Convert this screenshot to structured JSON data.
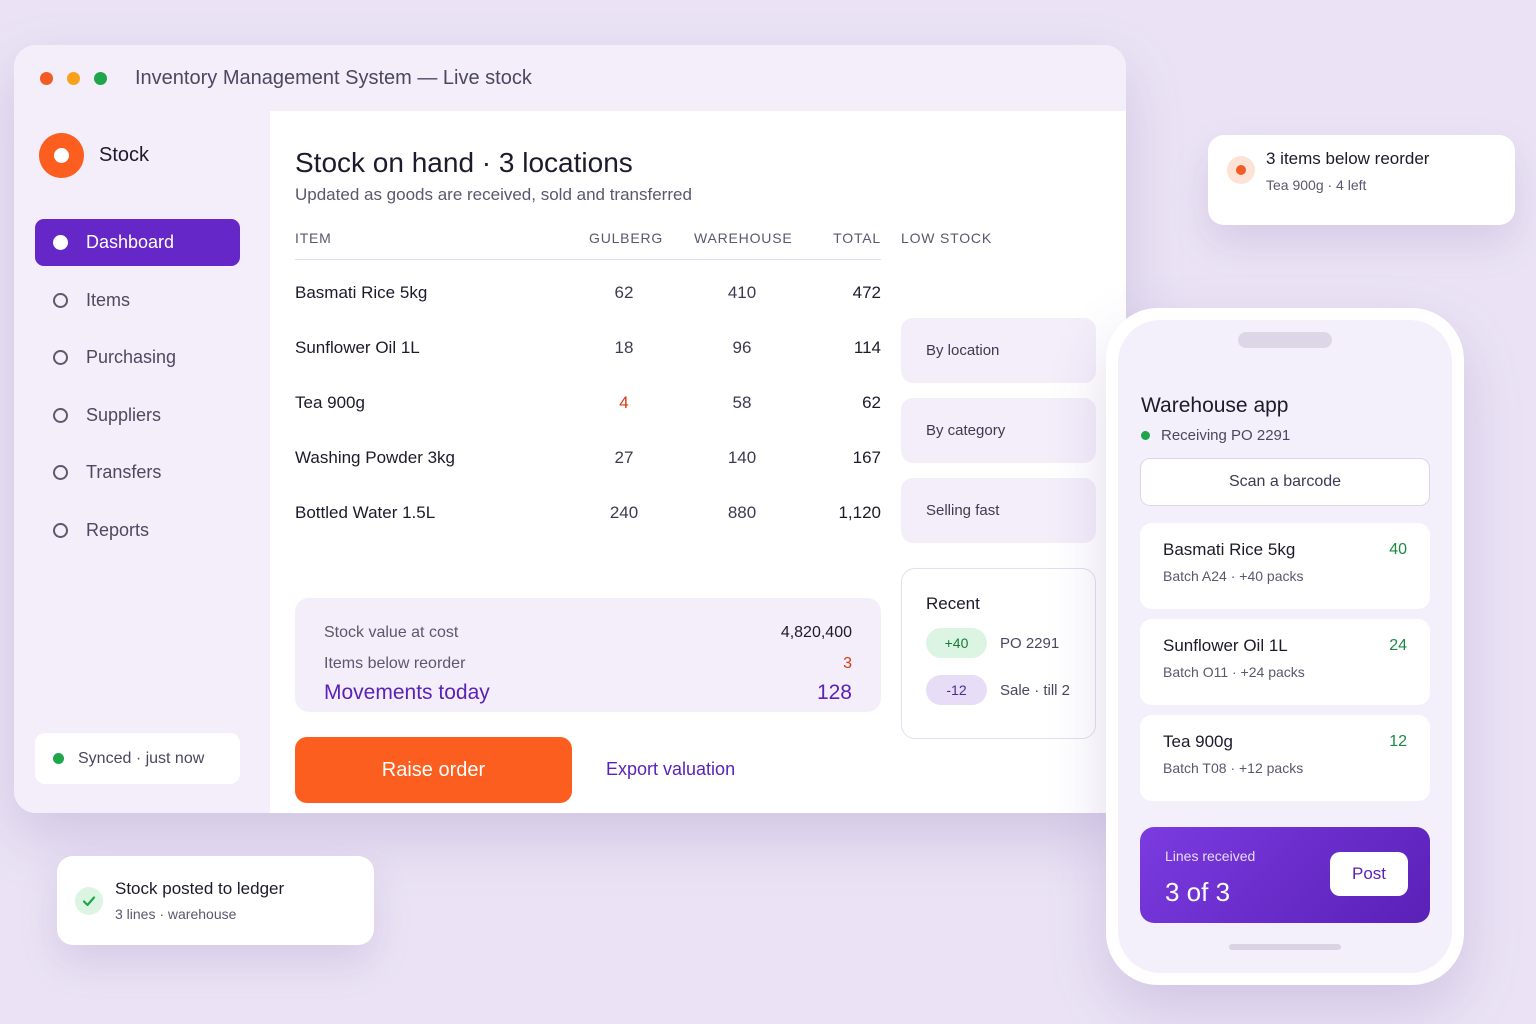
{
  "window": {
    "title": "Inventory Management System — Live stock"
  },
  "sidebar": {
    "brand": "Stock",
    "items": [
      {
        "label": "Dashboard",
        "active": true
      },
      {
        "label": "Items",
        "active": false
      },
      {
        "label": "Purchasing",
        "active": false
      },
      {
        "label": "Suppliers",
        "active": false
      },
      {
        "label": "Transfers",
        "active": false
      },
      {
        "label": "Reports",
        "active": false
      }
    ],
    "sync_status": "Synced · just now"
  },
  "main": {
    "title": "Stock on hand · 3 locations",
    "subtitle": "Updated as goods are received, sold and transferred",
    "columns": {
      "item": "ITEM",
      "gulberg": "GULBERG",
      "warehouse": "WAREHOUSE",
      "total": "TOTAL"
    },
    "rows": [
      {
        "item": "Basmati Rice 5kg",
        "gulberg": "62",
        "warehouse": "410",
        "total": "472",
        "low": false
      },
      {
        "item": "Sunflower Oil 1L",
        "gulberg": "18",
        "warehouse": "96",
        "total": "114",
        "low": false
      },
      {
        "item": "Tea 900g",
        "gulberg": "4",
        "warehouse": "58",
        "total": "62",
        "low": true
      },
      {
        "item": "Washing Powder 3kg",
        "gulberg": "27",
        "warehouse": "140",
        "total": "167",
        "low": false
      },
      {
        "item": "Bottled Water 1.5L",
        "gulberg": "240",
        "warehouse": "880",
        "total": "1,120",
        "low": false
      }
    ],
    "summary": {
      "stock_value_label": "Stock value at cost",
      "stock_value": "4,820,400",
      "below_reorder_label": "Items below reorder",
      "below_reorder": "3",
      "movements_label": "Movements today",
      "movements": "128"
    },
    "primary_action": "Raise order",
    "secondary_action": "Export valuation"
  },
  "low_stock": {
    "heading": "LOW STOCK",
    "filters": [
      "By location",
      "By category",
      "Selling fast"
    ],
    "recent": {
      "title": "Recent",
      "items": [
        {
          "delta": "+40",
          "text": "PO 2291",
          "kind": "positive"
        },
        {
          "delta": "-12",
          "text": "Sale · till 2",
          "kind": "negative"
        }
      ]
    }
  },
  "notification_top": {
    "title": "3 items below reorder",
    "subtitle": "Tea 900g · 4 left"
  },
  "notification_bottom": {
    "title": "Stock posted to ledger",
    "subtitle": "3 lines · warehouse"
  },
  "phone": {
    "title": "Warehouse app",
    "status": "Receiving PO 2291",
    "scan_label": "Scan a barcode",
    "cards": [
      {
        "name": "Basmati Rice 5kg",
        "detail": "Batch A24 · +40 packs",
        "qty": "40"
      },
      {
        "name": "Sunflower Oil 1L",
        "detail": "Batch O11 · +24 packs",
        "qty": "24"
      },
      {
        "name": "Tea 900g",
        "detail": "Batch T08 · +12 packs",
        "qty": "12"
      }
    ],
    "receipt": {
      "label": "Lines received",
      "value": "3 of 3",
      "post_label": "Post"
    }
  },
  "colors": {
    "accent_purple": "#6527c8",
    "accent_orange": "#fb5e1e",
    "success_green": "#1fa64b",
    "low_stock_red": "#d73a13"
  }
}
